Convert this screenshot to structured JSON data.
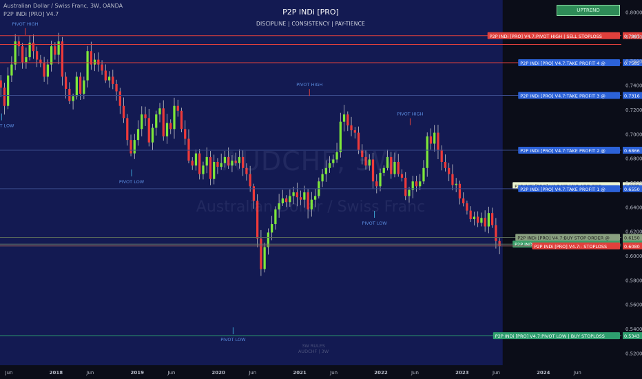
{
  "header": {
    "symbol_line": "Australian Dollar / Swiss Franc, 3W, OANDA",
    "indicator_line": "P2P INDi [PRO] V4.7"
  },
  "title": "P2P INDi [PRO]",
  "subtitle": "DISCIPLINE   |   CONSISTENCY   |   PAY-TIENCE",
  "trend_badge": "UPTREND",
  "watermark": {
    "ticker": "AUDCHF, 3W",
    "name": "Australian Dollar / Swiss Franc"
  },
  "footer_note": {
    "line1": "3W RULES",
    "line2": "AUDCHF | 3W"
  },
  "chart_data": {
    "type": "candlestick",
    "ylim": [
      0.51,
      0.81
    ],
    "y_ticks": [
      0.52,
      0.54,
      0.56,
      0.58,
      0.6,
      0.62,
      0.64,
      0.66,
      0.68,
      0.7,
      0.72,
      0.74,
      0.76,
      0.78,
      0.8
    ],
    "x_ticks": [
      {
        "label": "Jun",
        "t": 2017.42
      },
      {
        "label": "2018",
        "t": 2018.0
      },
      {
        "label": "Jun",
        "t": 2018.42
      },
      {
        "label": "2019",
        "t": 2019.0
      },
      {
        "label": "Jun",
        "t": 2019.42
      },
      {
        "label": "2020",
        "t": 2020.0
      },
      {
        "label": "Jun",
        "t": 2020.42
      },
      {
        "label": "2021",
        "t": 2021.0
      },
      {
        "label": "Jun",
        "t": 2021.42
      },
      {
        "label": "2022",
        "t": 2022.0
      },
      {
        "label": "Jun",
        "t": 2022.42
      },
      {
        "label": "2023",
        "t": 2023.0
      },
      {
        "label": "Jun",
        "t": 2023.42
      },
      {
        "label": "2024",
        "t": 2024.0
      },
      {
        "label": "Jun",
        "t": 2024.42
      }
    ],
    "t_range": [
      2017.31,
      2024.96
    ],
    "future_start": 2023.5,
    "closes": [
      0.738,
      0.723,
      0.748,
      0.757,
      0.776,
      0.772,
      0.759,
      0.763,
      0.775,
      0.768,
      0.761,
      0.758,
      0.747,
      0.757,
      0.772,
      0.765,
      0.776,
      0.747,
      0.737,
      0.727,
      0.731,
      0.747,
      0.733,
      0.744,
      0.768,
      0.757,
      0.761,
      0.757,
      0.752,
      0.744,
      0.747,
      0.741,
      0.735,
      0.723,
      0.713,
      0.695,
      0.684,
      0.695,
      0.704,
      0.716,
      0.713,
      0.693,
      0.705,
      0.716,
      0.721,
      0.698,
      0.709,
      0.704,
      0.723,
      0.719,
      0.704,
      0.696,
      0.678,
      0.674,
      0.684,
      0.667,
      0.674,
      0.681,
      0.663,
      0.677,
      0.673,
      0.676,
      0.681,
      0.674,
      0.678,
      0.676,
      0.681,
      0.672,
      0.667,
      0.657,
      0.645,
      0.614,
      0.589,
      0.607,
      0.619,
      0.626,
      0.638,
      0.643,
      0.647,
      0.644,
      0.649,
      0.652,
      0.648,
      0.646,
      0.652,
      0.638,
      0.646,
      0.649,
      0.661,
      0.667,
      0.672,
      0.676,
      0.679,
      0.685,
      0.71,
      0.716,
      0.707,
      0.703,
      0.701,
      0.687,
      0.681,
      0.674,
      0.679,
      0.661,
      0.657,
      0.668,
      0.672,
      0.681,
      0.667,
      0.677,
      0.667,
      0.664,
      0.649,
      0.654,
      0.661,
      0.657,
      0.661,
      0.672,
      0.698,
      0.692,
      0.701,
      0.687,
      0.677,
      0.672,
      0.667,
      0.658,
      0.659,
      0.647,
      0.643,
      0.637,
      0.63,
      0.632,
      0.627,
      0.631,
      0.624,
      0.635,
      0.625,
      0.612,
      0.608
    ],
    "pivot_markers": [
      {
        "label": "PIVOT HIGH",
        "t": 2017.62,
        "price": 0.788,
        "kind": "high"
      },
      {
        "label": "PIVOT LOW",
        "t": 2017.33,
        "price": 0.71,
        "kind": "low"
      },
      {
        "label": "PIVOT HIGH",
        "t": 2021.12,
        "price": 0.738,
        "kind": "high"
      },
      {
        "label": "PIVOT LOW",
        "t": 2018.93,
        "price": 0.664,
        "kind": "low"
      },
      {
        "label": "PIVOT HIGH",
        "t": 2022.36,
        "price": 0.714,
        "kind": "high"
      },
      {
        "label": "PIVOT LOW",
        "t": 2021.92,
        "price": 0.63,
        "kind": "low"
      },
      {
        "label": "PIVOT LOW",
        "t": 2020.18,
        "price": 0.5343,
        "kind": "low"
      }
    ],
    "levels": [
      {
        "label": "P2P INDi [PRO] V4.7:PIVOT HIGH | SELL STOPLOSS",
        "price": 0.7807,
        "value": "0.7807",
        "color": "#e0403c",
        "tag_bg": "#e0403c",
        "tag_fg": "#ffffff",
        "line": "#e0403c"
      },
      {
        "label": "",
        "price": 0.7735,
        "value": "",
        "color": "#e0403c",
        "tag_bg": "",
        "tag_fg": "",
        "line": "#e0403c"
      },
      {
        "label": "P2P INDi [PRO] V4.7:TAKE PROFIT 4 @",
        "price": 0.7585,
        "value": "0.7585",
        "color": "#3b6fe0",
        "tag_bg": "#2c62d8",
        "tag_fg": "#ffffff",
        "line": "#e0403c"
      },
      {
        "label": "P2P INDi [PRO] V4.7:TAKE PROFIT 3 @",
        "price": 0.7316,
        "value": "0.7316",
        "color": "#3b6fe0",
        "tag_bg": "#2c62d8",
        "tag_fg": "#ffffff",
        "line": "#3a4a8a"
      },
      {
        "label": "P2P INDi [PRO] V4.7:TAKE PROFIT 2 @",
        "price": 0.6866,
        "value": "0.6866",
        "color": "#3b6fe0",
        "tag_bg": "#2c62d8",
        "tag_fg": "#ffffff",
        "line": "#3a4a8a"
      },
      {
        "label": "P2P INDi [PRO] V4.7:MP  |  NO ADD ONS",
        "price": 0.6575,
        "value": "0.6575",
        "color": "#e8f5c8",
        "tag_bg": "#eef6d2",
        "tag_fg": "#1a1a1a",
        "line": ""
      },
      {
        "label": "P2P INDi [PRO] V4.7:TAKE PROFIT 1 @",
        "price": 0.655,
        "value": "0.6550",
        "color": "#3b6fe0",
        "tag_bg": "#2c62d8",
        "tag_fg": "#ffffff",
        "line": "#3a4a8a"
      },
      {
        "label": "P2P INDi [PRO] V4.7:BUY STOP ORDER @",
        "price": 0.615,
        "value": "0.6150",
        "color": "#c8d8a8",
        "tag_bg": "#8aa080",
        "tag_fg": "#1a1a1a",
        "line": "#5a6a5a"
      },
      {
        "label": "P2P INDi [PRO] V4.7:BUY LIMIT ORDER @",
        "price": 0.6095,
        "value": "0.6095",
        "color": "#3aa06a",
        "tag_bg": "#3aa06a",
        "tag_fg": "#ffffff",
        "line": "#6a7a6a"
      },
      {
        "label": "P2P INDi [PRO] V4.7:- STOPLOSS",
        "price": 0.608,
        "value": "0.6080",
        "color": "#e0403c",
        "tag_bg": "#e0403c",
        "tag_fg": "#ffffff",
        "line": "#8a5a5a"
      },
      {
        "label": "P2P INDi [PRO] V4.7:PIVOT LOW | BUY STOPLOSS",
        "price": 0.5343,
        "value": "0.5343",
        "color": "#2e9e6e",
        "tag_bg": "#2e9e6e",
        "tag_fg": "#ffffff",
        "line": "#2e9e6e"
      }
    ],
    "colors": {
      "up": "#7ee83a",
      "down": "#ee3a3a",
      "wick": "#c8c8c8",
      "bg": "#0b0d18",
      "history_bg": "#131a52",
      "axis_text": "#b8bcc8"
    }
  }
}
